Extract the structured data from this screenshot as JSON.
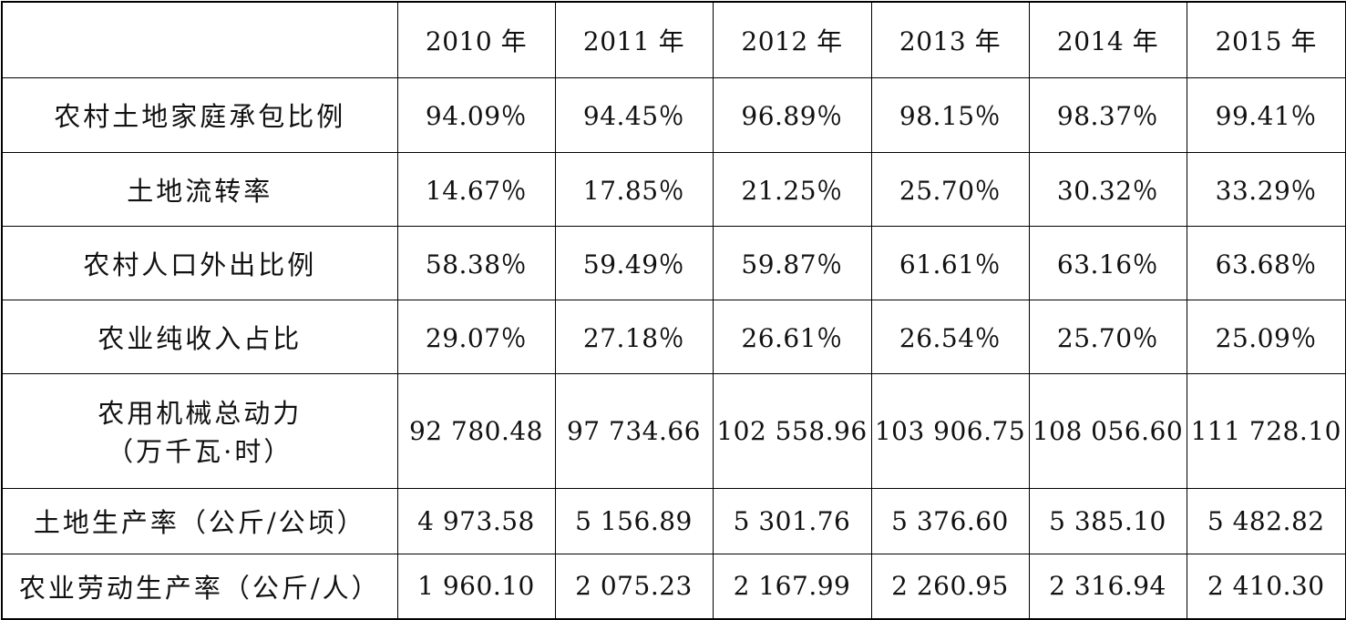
{
  "table": {
    "header": [
      "2010 年",
      "2011 年",
      "2012 年",
      "2013 年",
      "2014 年",
      "2015 年"
    ],
    "rows": [
      {
        "label": "农村土地家庭承包比例",
        "cells": [
          "94.09％",
          "94.45％",
          "96.89％",
          "98.15％",
          "98.37％",
          "99.41％"
        ]
      },
      {
        "label": "土地流转率",
        "cells": [
          "14.67％",
          "17.85％",
          "21.25％",
          "25.70％",
          "30.32％",
          "33.29％"
        ]
      },
      {
        "label": "农村人口外出比例",
        "cells": [
          "58.38％",
          "59.49％",
          "59.87％",
          "61.61％",
          "63.16％",
          "63.68％"
        ]
      },
      {
        "label": "农业纯收入占比",
        "cells": [
          "29.07％",
          "27.18％",
          "26.61％",
          "26.54％",
          "25.70％",
          "25.09％"
        ]
      },
      {
        "label": "农用机械总动力\n（万千瓦·时）",
        "cells": [
          "92 780.48",
          "97 734.66",
          "102 558.96",
          "103 906.75",
          "108 056.60",
          "111 728.10"
        ]
      },
      {
        "label": "土地生产率（公斤/公顷）",
        "cells": [
          "4 973.58",
          "5 156.89",
          "5 301.76",
          "5 376.60",
          "5 385.10",
          "5 482.82"
        ]
      },
      {
        "label": "农业劳动生产率（公斤/人）",
        "cells": [
          "1 960.10",
          "2 075.23",
          "2 167.99",
          "2 260.95",
          "2 316.94",
          "2 410.30"
        ]
      }
    ]
  }
}
